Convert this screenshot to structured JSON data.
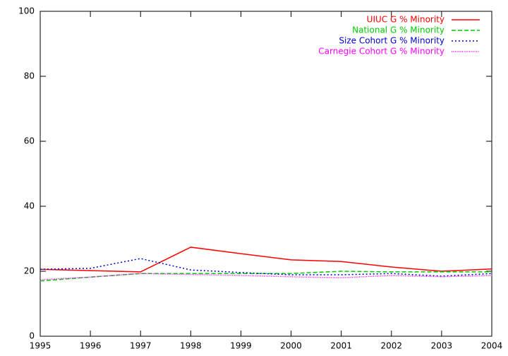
{
  "chart_data": {
    "type": "line",
    "x": [
      1995,
      1996,
      1997,
      1998,
      1999,
      2000,
      2001,
      2002,
      2003,
      2004
    ],
    "series": [
      {
        "name": "UIUC G % Minority",
        "color": "#ff0000",
        "dash": "solid",
        "values": [
          20.6,
          20.2,
          19.8,
          27.4,
          25.4,
          23.5,
          23.0,
          21.3,
          20.0,
          20.7
        ]
      },
      {
        "name": "National G % Minority",
        "color": "#00cc00",
        "dash": "dashed",
        "values": [
          17.0,
          18.2,
          19.3,
          19.3,
          19.3,
          19.3,
          20.0,
          19.8,
          19.8,
          19.8
        ]
      },
      {
        "name": "Size Cohort G % Minority",
        "color": "#0000cc",
        "dash": "dotted",
        "values": [
          20.6,
          20.9,
          23.9,
          20.4,
          19.6,
          18.9,
          18.9,
          19.3,
          18.5,
          19.3
        ]
      },
      {
        "name": "Carnegie Cohort G % Minority",
        "color": "#ff00ff",
        "dash": "fine-dotted",
        "values": [
          17.4,
          18.2,
          19.3,
          19.0,
          18.7,
          18.3,
          18.0,
          18.7,
          18.3,
          18.7
        ]
      }
    ],
    "xlim": [
      1995,
      2004
    ],
    "xticks": [
      1995,
      1996,
      1997,
      1998,
      1999,
      2000,
      2001,
      2002,
      2003,
      2004
    ],
    "ylim": [
      0,
      100
    ],
    "yticks": [
      0,
      20,
      40,
      60,
      80,
      100
    ],
    "grid": false,
    "legend": "top-right"
  }
}
